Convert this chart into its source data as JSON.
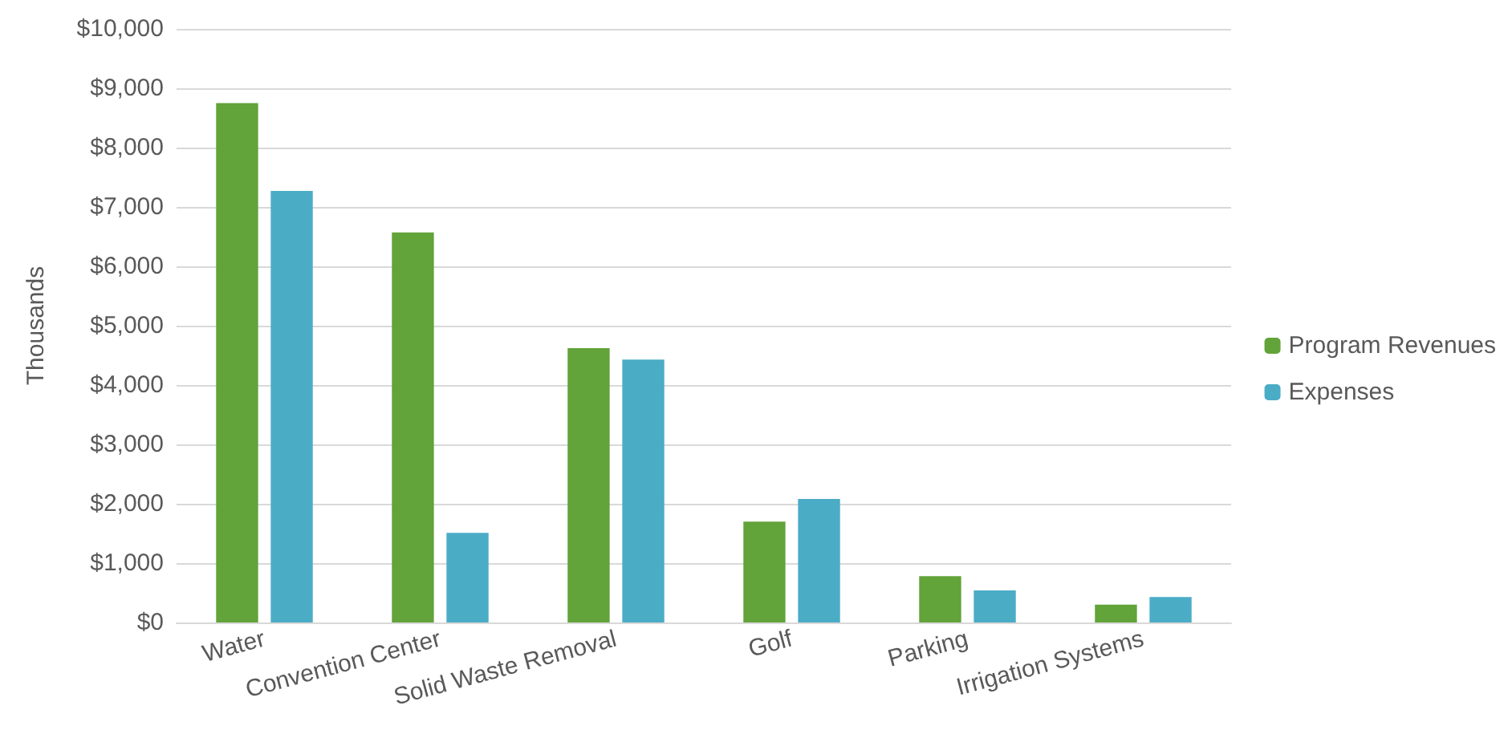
{
  "chart_data": {
    "type": "bar",
    "ylabel": "Thousands",
    "categories": [
      "Water",
      "Convention Center",
      "Solid Waste Removal",
      "Golf",
      "Parking",
      "Irrigation Systems"
    ],
    "series": [
      {
        "name": "Program Revenues",
        "color": "#62a33a",
        "values": [
          8750,
          6570,
          4620,
          1700,
          780,
          300
        ]
      },
      {
        "name": "Expenses",
        "color": "#4bacc6",
        "values": [
          7270,
          1510,
          4430,
          2080,
          540,
          430
        ]
      }
    ],
    "ylim": [
      0,
      10000
    ],
    "yticks": [
      {
        "value": 0,
        "label": "$0"
      },
      {
        "value": 1000,
        "label": "$1,000"
      },
      {
        "value": 2000,
        "label": "$2,000"
      },
      {
        "value": 3000,
        "label": "$3,000"
      },
      {
        "value": 4000,
        "label": "$4,000"
      },
      {
        "value": 5000,
        "label": "$5,000"
      },
      {
        "value": 6000,
        "label": "$6,000"
      },
      {
        "value": 7000,
        "label": "$7,000"
      },
      {
        "value": 8000,
        "label": "$8,000"
      },
      {
        "value": 9000,
        "label": "$9,000"
      },
      {
        "value": 10000,
        "label": "$10,000"
      }
    ],
    "grid": "y",
    "legend": "right"
  }
}
